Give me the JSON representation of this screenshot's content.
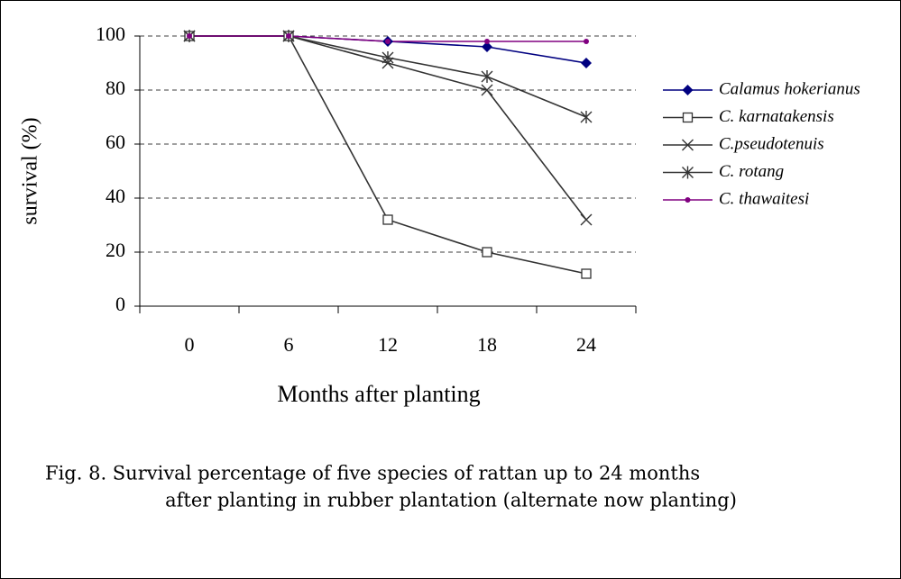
{
  "chart_data": {
    "type": "line",
    "x_label": "Months after planting",
    "y_label": "survival (%)",
    "caption": [
      "Fig. 8. Survival percentage of five species of rattan up to 24 months",
      "after planting in rubber plantation (alternate now planting)"
    ],
    "categories": [
      "0",
      "6",
      "12",
      "18",
      "24"
    ],
    "series": [
      {
        "name": "Calamus hokerianus",
        "color": "#000080",
        "marker": "diamond",
        "values": [
          100,
          100,
          98,
          96,
          90
        ]
      },
      {
        "name": "C. karnatakensis",
        "color": "#333333",
        "marker": "square",
        "values": [
          100,
          100,
          32,
          20,
          12
        ]
      },
      {
        "name": "C.pseudotenuis",
        "color": "#333333",
        "marker": "x",
        "values": [
          100,
          100,
          90,
          80,
          32
        ]
      },
      {
        "name": "C. rotang",
        "color": "#333333",
        "marker": "asterisk",
        "values": [
          100,
          100,
          92,
          85,
          70
        ]
      },
      {
        "name": "C. thawaitesi",
        "color": "#800080",
        "marker": "dot",
        "values": [
          100,
          100,
          98,
          98,
          98
        ]
      }
    ],
    "ylim": [
      0,
      100
    ],
    "yticks": [
      0,
      20,
      40,
      60,
      80,
      100
    ],
    "grid": true,
    "legend": "right"
  }
}
